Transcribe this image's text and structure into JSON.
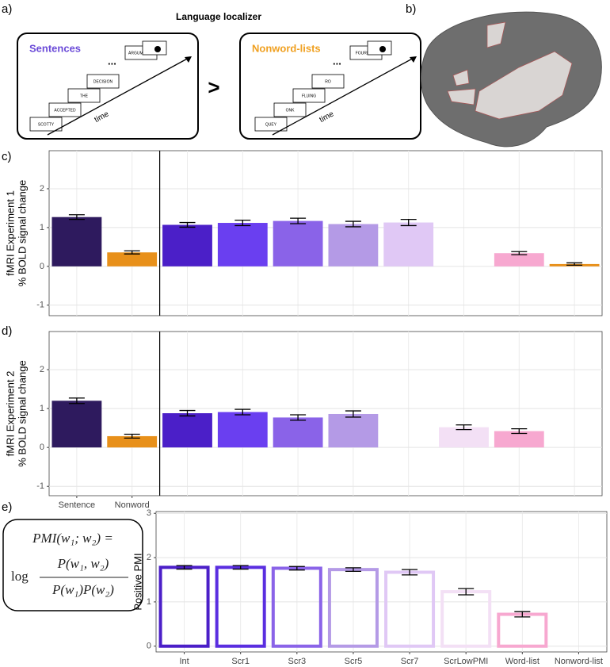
{
  "panel_labels": [
    "a)",
    "b)",
    "c)",
    "d)",
    "e)"
  ],
  "localizer": {
    "title": "Language localizer",
    "sentences": {
      "label": "Sentences",
      "words": [
        "SCOTTY",
        "ACCEPTED",
        "THE",
        "DECISION",
        "...",
        "ARGUMENTS"
      ],
      "time": "time"
    },
    "comparator": ">",
    "nonwords": {
      "label": "Nonword-lists",
      "words": [
        "QUEY",
        "ONK",
        "FLUING",
        "RO",
        "...",
        "FOURNING"
      ],
      "time": "time"
    }
  },
  "formula": {
    "lhs": "PMI(w₁; w₂) =",
    "log": "log",
    "numerator": "P(w₁, w₂)",
    "denominator": "P(w₁)P(w₂)"
  },
  "chart_data": [
    {
      "type": "bar",
      "y_label": [
        "fMRI Experiment 1",
        "% BOLD signal change"
      ],
      "categories": [
        null,
        null,
        null,
        null,
        null,
        null,
        null,
        null,
        null,
        null
      ],
      "values": [
        1.27,
        0.36,
        1.07,
        1.12,
        1.17,
        1.09,
        1.13,
        null,
        0.34,
        0.06
      ],
      "errors": [
        0.06,
        0.04,
        0.06,
        0.07,
        0.07,
        0.07,
        0.08,
        null,
        0.04,
        0.03
      ],
      "colors": [
        "#2e1a5e",
        "#e8901a",
        "#4b1fc8",
        "#6a3ff0",
        "#8a63e8",
        "#b49ae6",
        "#e0c8f5",
        "#f3e0f5",
        "#f7a8d0",
        "#e8901a"
      ],
      "ylim": [
        -1.27,
        2.98
      ],
      "yticks": [
        -1,
        0,
        1,
        2
      ],
      "grid": true
    },
    {
      "type": "bar",
      "y_label": [
        "fMRI Experiment 2",
        "% BOLD signal change"
      ],
      "categories": [
        "Sentence",
        "Nonword",
        null,
        null,
        null,
        null,
        null,
        null,
        null,
        null
      ],
      "values": [
        1.2,
        0.29,
        0.88,
        0.91,
        0.77,
        0.86,
        null,
        0.52,
        0.42,
        null
      ],
      "errors": [
        0.07,
        0.05,
        0.07,
        0.07,
        0.07,
        0.08,
        null,
        0.06,
        0.06,
        null
      ],
      "colors": [
        "#2e1a5e",
        "#e8901a",
        "#4b1fc8",
        "#6a3ff0",
        "#8a63e8",
        "#b49ae6",
        "#e0c8f5",
        "#f3e0f5",
        "#f7a8d0",
        "#e8901a"
      ],
      "ylim": [
        -1.24,
        2.98
      ],
      "yticks": [
        -1,
        0,
        1,
        2
      ],
      "grid": true
    },
    {
      "type": "bar",
      "y_label": [
        "Positive PMI"
      ],
      "outline": true,
      "categories": [
        "Int",
        "Scr1",
        "Scr3",
        "Scr5",
        "Scr7",
        "ScrLowPMI",
        "Word-list",
        "Nonword-list"
      ],
      "values": [
        1.78,
        1.78,
        1.76,
        1.73,
        1.67,
        1.23,
        0.72,
        null
      ],
      "errors": [
        0.04,
        0.04,
        0.04,
        0.04,
        0.06,
        0.07,
        0.06,
        null
      ],
      "colors": [
        "#4b1fc8",
        "#5a2ee0",
        "#8a63e8",
        "#b49ae6",
        "#e0c8f5",
        "#f3e0f5",
        "#f7a8d0",
        "#e8901a"
      ],
      "ylim": [
        -0.13,
        3.04
      ],
      "yticks": [
        0,
        1,
        2,
        3
      ],
      "grid": true
    }
  ]
}
